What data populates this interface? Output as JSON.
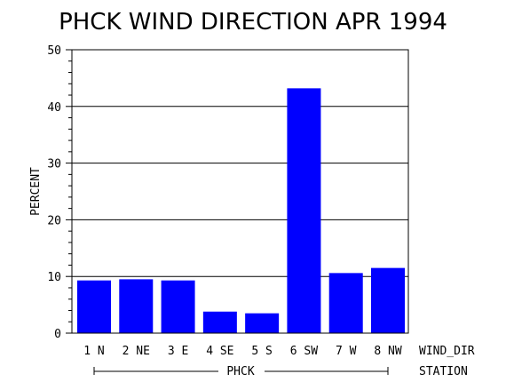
{
  "chart_data": {
    "type": "bar",
    "title": "PHCK WIND DIRECTION APR 1994",
    "ylabel": "PERCENT",
    "xlabel": "WIND_DIR",
    "group_axis_label": "STATION",
    "group_label": "PHCK",
    "categories": [
      "1 N",
      "2 NE",
      "3 E",
      "4 SE",
      "5 S",
      "6 SW",
      "7 W",
      "8 NW"
    ],
    "values": [
      9.3,
      9.5,
      9.3,
      3.8,
      3.5,
      43.2,
      10.6,
      11.5
    ],
    "ylim": [
      0,
      50
    ],
    "yticks": [
      0,
      10,
      20,
      30,
      40,
      50
    ],
    "grid": true,
    "bar_color": "#0000ff"
  }
}
